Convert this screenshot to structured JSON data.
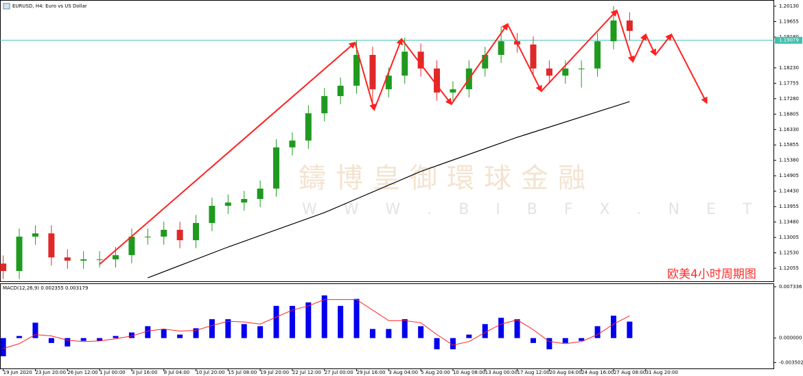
{
  "chart_data": [
    {
      "type": "candlestick",
      "title": "EURUSD, H4:  Euro vs US Dollar",
      "watermark": [
        "鑄博皇御環球金融",
        "W W W . B I B F X . N E T"
      ],
      "annotation": "欧美4小时周期图",
      "up_color": "#1f9a1f",
      "down_color": "#e02828",
      "open": [
        1.122,
        1.1197,
        1.1303,
        1.1313,
        1.1239,
        1.1229,
        1.1233,
        1.1233,
        1.1246,
        1.1303,
        1.1303,
        1.1324,
        1.1292,
        1.1345,
        1.1398,
        1.1408,
        1.1419,
        1.1451,
        1.1578,
        1.1599,
        1.1683,
        1.1736,
        1.1768,
        1.1863,
        1.1757,
        1.1799,
        1.1873,
        1.1821,
        1.1747,
        1.1757,
        1.1821,
        1.1863,
        1.1905,
        1.1895,
        1.1821,
        1.1799,
        1.1821,
        1.1821,
        1.1905,
        1.1969
      ],
      "high": [
        1.1245,
        1.1328,
        1.1338,
        1.1338,
        1.1264,
        1.1258,
        1.1258,
        1.1271,
        1.1328,
        1.1328,
        1.1349,
        1.1349,
        1.137,
        1.1423,
        1.1433,
        1.1444,
        1.1476,
        1.1603,
        1.1624,
        1.1708,
        1.1761,
        1.1793,
        1.1908,
        1.1888,
        1.1824,
        1.1916,
        1.1898,
        1.1846,
        1.1782,
        1.1846,
        1.1888,
        1.195,
        1.193,
        1.192,
        1.1846,
        1.1846,
        1.1846,
        1.193,
        1.2013,
        1.1994
      ],
      "low": [
        1.1172,
        1.1172,
        1.1278,
        1.1214,
        1.1204,
        1.1204,
        1.1208,
        1.1208,
        1.1221,
        1.1278,
        1.1278,
        1.1267,
        1.1267,
        1.132,
        1.1373,
        1.1383,
        1.1394,
        1.1426,
        1.1553,
        1.1574,
        1.1658,
        1.1711,
        1.1743,
        1.1695,
        1.1732,
        1.1774,
        1.1796,
        1.1722,
        1.1722,
        1.1732,
        1.1796,
        1.1838,
        1.187,
        1.1796,
        1.1774,
        1.1774,
        1.1762,
        1.1796,
        1.188,
        1.1908
      ],
      "close": [
        1.1197,
        1.1303,
        1.1313,
        1.1239,
        1.1229,
        1.1233,
        1.1233,
        1.1246,
        1.1303,
        1.1303,
        1.1324,
        1.1292,
        1.1345,
        1.1398,
        1.1408,
        1.1419,
        1.1451,
        1.1578,
        1.1599,
        1.1683,
        1.1736,
        1.1768,
        1.1863,
        1.1757,
        1.1799,
        1.1873,
        1.1821,
        1.1747,
        1.1757,
        1.1821,
        1.1863,
        1.1905,
        1.1895,
        1.1821,
        1.1799,
        1.1821,
        1.1821,
        1.1905,
        1.1969,
        1.1937
      ],
      "ma": {
        "color": "#000000",
        "x": [
          9,
          14,
          20,
          26,
          32,
          39
        ],
        "values": [
          1.1176,
          1.1271,
          1.1377,
          1.1504,
          1.1609,
          1.1719
        ]
      },
      "zigzag": {
        "color": "#ff2020",
        "x": [
          6.0,
          21.9,
          23.1,
          24.8,
          27.9,
          31.4,
          33.5,
          38.2,
          39.2,
          40.0,
          40.6,
          41.6,
          43.8
        ],
        "values": [
          1.1218,
          1.1901,
          1.1694,
          1.1912,
          1.1711,
          1.1958,
          1.1751,
          1.2,
          1.1842,
          1.1926,
          1.1863,
          1.1926,
          1.1715
        ]
      },
      "current_price": 1.19079,
      "current_color": "#40c0b0",
      "xlim": [
        -0.2,
        48
      ],
      "ylim": [
        1.11653,
        1.20215
      ],
      "yticks": [
        {
          "value": 1.2013,
          "label": "1.20130"
        },
        1.19655,
        {
          "value": 1.1918,
          "label": "1.19180"
        },
        {
          "value": 1.1823,
          "label": "1.18230"
        },
        1.17755,
        {
          "value": 1.1728,
          "label": "1.17280"
        },
        1.16805,
        {
          "value": 1.1633,
          "label": "1.16330"
        },
        1.15855,
        {
          "value": 1.1538,
          "label": "1.15380"
        },
        1.14905,
        {
          "value": 1.1443,
          "label": "1.14430"
        },
        1.13955,
        {
          "value": 1.1348,
          "label": "1.13480"
        },
        1.13005,
        {
          "value": 1.1253,
          "label": "1.12530"
        },
        1.12055
      ]
    },
    {
      "type": "bar",
      "title": "MACD(12,26,9) 0.002355 0.003179",
      "color": "#0000ee",
      "values": [
        -0.0026,
        0.0003,
        0.0022,
        -0.0007,
        -0.0012,
        -0.0004,
        -0.0004,
        0.0003,
        0.0008,
        0.0017,
        0.0013,
        0.0005,
        0.0014,
        0.0027,
        0.0027,
        0.002,
        0.0017,
        0.0046,
        0.0046,
        0.0051,
        0.0061,
        0.0046,
        0.0056,
        0.0013,
        0.0013,
        0.0027,
        0.0017,
        -0.0016,
        -0.0016,
        0.0005,
        0.002,
        0.0029,
        0.0027,
        -0.0007,
        -0.0016,
        -0.0007,
        -0.0004,
        0.0017,
        0.0032,
        0.002355
      ],
      "signal": {
        "color": "#ff2020",
        "values": [
          -0.0015,
          -0.0008,
          0.0005,
          0.0003,
          -0.0003,
          -0.0005,
          -0.0004,
          -0.0001,
          0.0003,
          0.001,
          0.0013,
          0.001,
          0.0011,
          0.0018,
          0.0024,
          0.0023,
          0.002,
          0.003,
          0.004,
          0.0046,
          0.0055,
          0.0055,
          0.0055,
          0.004,
          0.0025,
          0.0025,
          0.0022,
          0.0005,
          -0.001,
          -0.0005,
          0.0008,
          0.002,
          0.0026,
          0.0012,
          -0.0005,
          -0.0008,
          -0.0005,
          0.0005,
          0.002,
          0.003179
        ]
      },
      "xlim": [
        -0.2,
        48
      ],
      "ylim": [
        -0.00434,
        0.00772
      ],
      "yticks": [
        0.007336,
        {
          "value": 0,
          "label": "0.000000"
        },
        -0.003502
      ],
      "xticks": [
        {
          "value": 0,
          "label": "19 Jun 2020"
        },
        {
          "value": 2,
          "label": "23 Jun 20:00"
        },
        {
          "value": 4,
          "label": "26 Jun 12:00"
        },
        {
          "value": 6,
          "label": "1 Jul 00:00"
        },
        {
          "value": 8,
          "label": "3 Jul 16:00"
        },
        {
          "value": 10,
          "label": "8 Jul 04:00"
        },
        {
          "value": 12,
          "label": "10 Jul 20:00"
        },
        {
          "value": 14,
          "label": "15 Jul 08:00"
        },
        {
          "value": 16,
          "label": "19 Jul 20:00"
        },
        {
          "value": 18,
          "label": "22 Jul 12:00"
        },
        {
          "value": 20,
          "label": "27 Jul 00:00"
        },
        {
          "value": 22,
          "label": "29 Jul 16:00"
        },
        {
          "value": 24,
          "label": "3 Aug 04:00"
        },
        {
          "value": 26,
          "label": "5 Aug 20:00"
        },
        {
          "value": 28,
          "label": "10 Aug 08:00"
        },
        {
          "value": 30,
          "label": "13 Aug 00:00"
        },
        {
          "value": 32,
          "label": "17 Aug 12:00"
        },
        {
          "value": 34,
          "label": "20 Aug 04:00"
        },
        {
          "value": 36,
          "label": "24 Aug 16:00"
        },
        {
          "value": 38,
          "label": "27 Aug 08:00"
        },
        {
          "value": 40,
          "label": "31 Aug 20:00"
        }
      ]
    }
  ]
}
